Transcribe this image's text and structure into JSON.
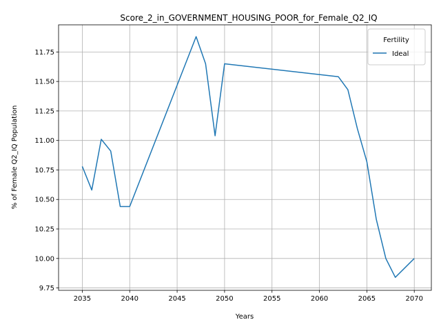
{
  "chart_data": {
    "type": "line",
    "title": "Score_2_in_GOVERNMENT_HOUSING_POOR_for_Female_Q2_IQ",
    "xlabel": "Years",
    "ylabel": "% of Female Q2_IQ Population",
    "xlim": [
      2032.5,
      2071.8
    ],
    "ylim": [
      9.73,
      11.98
    ],
    "xticks": [
      2035,
      2040,
      2045,
      2050,
      2055,
      2060,
      2065,
      2070
    ],
    "yticks": [
      9.75,
      10.0,
      10.25,
      10.5,
      10.75,
      11.0,
      11.25,
      11.5,
      11.75
    ],
    "ytick_labels": [
      "9.75",
      "10.00",
      "10.25",
      "10.50",
      "10.75",
      "11.00",
      "11.25",
      "11.50",
      "11.75"
    ],
    "grid": true,
    "legend": {
      "title": "Fertility",
      "position": "top-right"
    },
    "series": [
      {
        "name": "Ideal",
        "color": "#1f77b4",
        "x": [
          2035,
          2036,
          2037,
          2038,
          2039,
          2040,
          2047,
          2048,
          2049,
          2050,
          2062,
          2063,
          2064,
          2065,
          2066,
          2067,
          2068,
          2070
        ],
        "y": [
          10.78,
          10.58,
          11.01,
          10.91,
          10.44,
          10.44,
          11.88,
          11.65,
          11.04,
          11.65,
          11.54,
          11.43,
          11.1,
          10.82,
          10.33,
          10.0,
          9.84,
          10.0
        ]
      }
    ]
  }
}
